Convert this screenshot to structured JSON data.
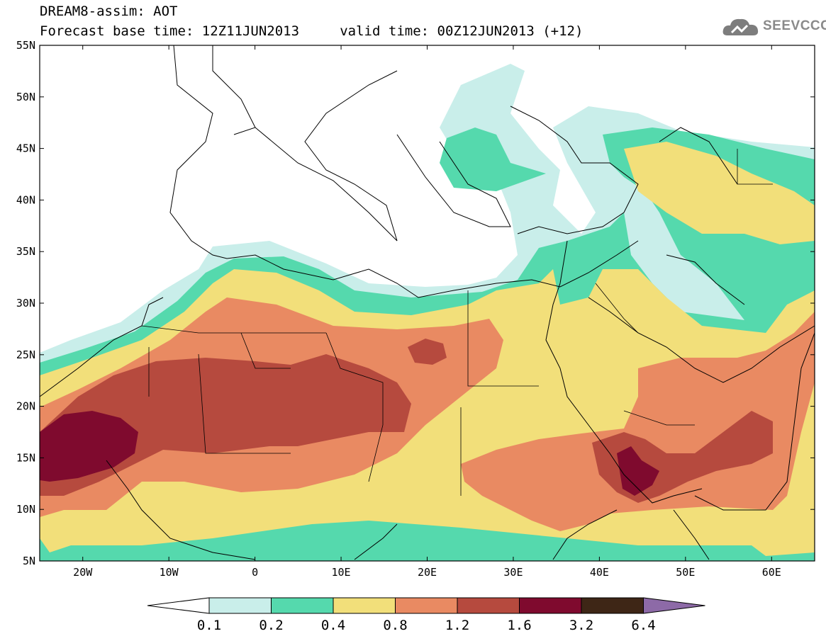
{
  "header": {
    "line1": "DREAM8-assim: AOT",
    "line2": "Forecast base time: 12Z11JUN2013     valid time: 00Z12JUN2013 (+12)"
  },
  "logo": {
    "text": "SEEVCCC",
    "icon": "cloud-icon"
  },
  "map": {
    "lon_range": [
      -25,
      65
    ],
    "lat_range": [
      5,
      55
    ],
    "lon_ticks": [
      "20W",
      "10W",
      "0",
      "10E",
      "20E",
      "30E",
      "40E",
      "50E",
      "60E"
    ],
    "lat_ticks": [
      "55N",
      "50N",
      "45N",
      "40N",
      "35N",
      "30N",
      "25N",
      "20N",
      "15N",
      "10N",
      "5N"
    ]
  },
  "colorbar": {
    "labels": [
      "0.1",
      "0.2",
      "0.4",
      "0.8",
      "1.2",
      "1.6",
      "3.2",
      "6.4"
    ],
    "colors": [
      "#ffffff",
      "#c9eeea",
      "#55d9ad",
      "#f2df7a",
      "#e98a62",
      "#b64a3e",
      "#7f0a2e",
      "#3e2616",
      "#8d6aa7"
    ]
  }
}
